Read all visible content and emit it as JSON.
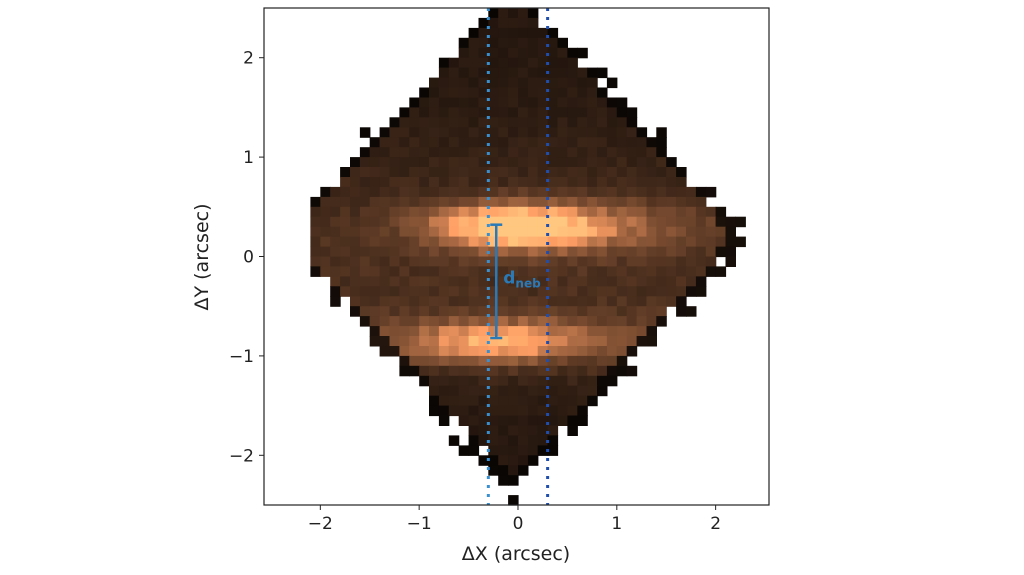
{
  "chart_data": {
    "type": "heatmap",
    "colormap": "copper",
    "xlabel": "ΔX (arcsec)",
    "ylabel": "ΔY (arcsec)",
    "xlim": [
      -2.57,
      2.54
    ],
    "ylim": [
      -2.5,
      2.5
    ],
    "xticks": [
      -2,
      -1,
      0,
      1,
      2
    ],
    "yticks": [
      -2,
      -1,
      0,
      1,
      2
    ],
    "xtick_labels": [
      "−2",
      "−1",
      "0",
      "1",
      "2"
    ],
    "ytick_labels": [
      "−2",
      "−1",
      "0",
      "1",
      "2"
    ],
    "pixel_scale": 0.1,
    "bright_bands_y": [
      0.3,
      -0.85
    ],
    "vertical_lines": [
      {
        "x": -0.3,
        "style": "dotted",
        "color": "#3a8fd0"
      },
      {
        "x": 0.3,
        "style": "dotted",
        "color": "#1f4fae"
      }
    ],
    "annotation": {
      "label_main": "d",
      "label_sub": "neb",
      "x": -0.22,
      "y_top": 0.32,
      "y_bottom": -0.82,
      "color": "#2a7ab8"
    },
    "grid": false
  }
}
